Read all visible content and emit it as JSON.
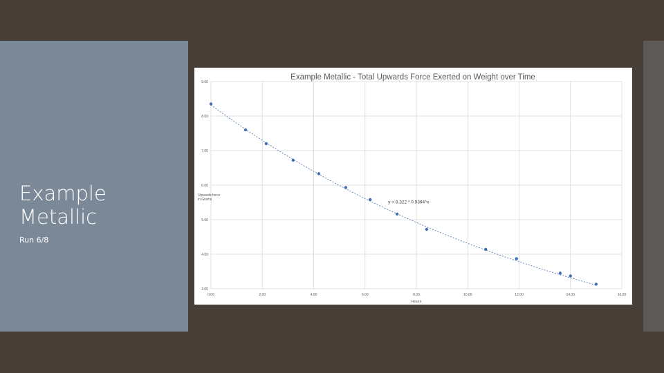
{
  "slide": {
    "title_line1": "Example",
    "title_line2": "Metallic",
    "subtitle": "Run 6/8"
  },
  "colors": {
    "background": "#483e38",
    "left_panel": "#7b8897",
    "right_strip": "#5c5957",
    "marker": "#3f6fb0",
    "gridline": "#d9d9d9"
  },
  "chart_data": {
    "type": "scatter",
    "title": "Example Metallic - Total Upwards Force Exerted on Weight over Time",
    "xlabel": "Hours",
    "ylabel": "Upwards force in Grams",
    "xlim": [
      0,
      16
    ],
    "ylim": [
      3,
      9
    ],
    "x_ticks": [
      "0.00",
      "2.00",
      "4.00",
      "6.00",
      "8.00",
      "10.00",
      "12.00",
      "14.00",
      "16.00"
    ],
    "y_ticks": [
      "3.00",
      "4.00",
      "5.00",
      "6.00",
      "7.00",
      "8.00",
      "9.00"
    ],
    "grid": true,
    "trendline": {
      "type": "exponential",
      "a": 8.322,
      "b": 0.9364,
      "label": "y = 8.322 * 0.9364^x"
    },
    "series": [
      {
        "x": [
          0.0,
          1.35,
          2.15,
          3.2,
          4.2,
          5.25,
          6.2,
          7.25,
          8.4,
          10.7,
          11.9,
          13.6,
          14.0,
          15.0
        ],
        "y": [
          8.35,
          7.6,
          7.2,
          6.72,
          6.33,
          5.93,
          5.58,
          5.16,
          4.72,
          4.14,
          3.87,
          3.45,
          3.37,
          3.13
        ]
      }
    ]
  }
}
